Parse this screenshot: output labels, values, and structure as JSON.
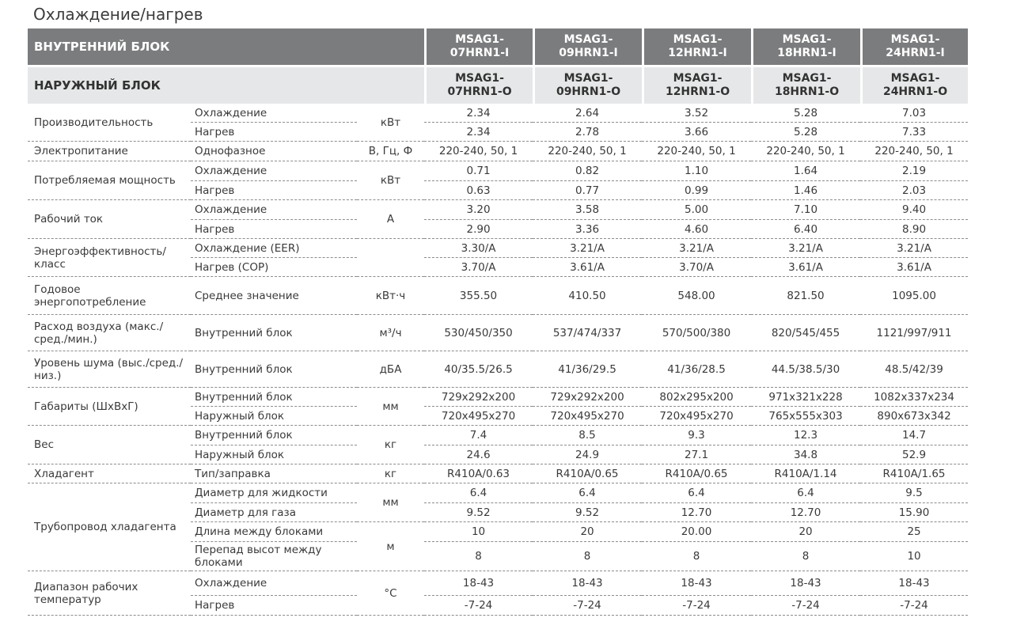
{
  "title": "Охлаждение/нагрев",
  "header": {
    "indoor_label": "ВНУТРЕННИЙ БЛОК",
    "outdoor_label": "НАРУЖНЫЙ БЛОК",
    "indoor_models": [
      [
        "MSAG1-",
        "07HRN1-I"
      ],
      [
        "MSAG1-",
        "09HRN1-I"
      ],
      [
        "MSAG1-",
        "12HRN1-I"
      ],
      [
        "MSAG1-",
        "18HRN1-I"
      ],
      [
        "MSAG1-",
        "24HRN1-I"
      ]
    ],
    "outdoor_models": [
      [
        "MSAG1-",
        "07HRN1-O"
      ],
      [
        "MSAG1-",
        "09HRN1-O"
      ],
      [
        "MSAG1-",
        "12HRN1-O"
      ],
      [
        "MSAG1-",
        "18HRN1-O"
      ],
      [
        "MSAG1-",
        "24HRN1-O"
      ]
    ]
  },
  "groups": [
    {
      "param": "Производительность",
      "rows": [
        {
          "sub": "Охлаждение",
          "unit": "кВт",
          "values": [
            "2.34",
            "2.64",
            "3.52",
            "5.28",
            "7.03"
          ]
        },
        {
          "sub": "Нагрев",
          "unit": "",
          "values": [
            "2.34",
            "2.78",
            "3.66",
            "5.28",
            "7.33"
          ]
        }
      ]
    },
    {
      "param": "Электропитание",
      "rows": [
        {
          "sub": "Однофазное",
          "unit": "В, Гц, Ф",
          "values": [
            "220-240, 50, 1",
            "220-240, 50, 1",
            "220-240, 50, 1",
            "220-240, 50, 1",
            "220-240, 50, 1"
          ]
        }
      ]
    },
    {
      "param": "Потребляемая мощность",
      "rows": [
        {
          "sub": "Охлаждение",
          "unit": "кВт",
          "values": [
            "0.71",
            "0.82",
            "1.10",
            "1.64",
            "2.19"
          ]
        },
        {
          "sub": "Нагрев",
          "unit": "",
          "values": [
            "0.63",
            "0.77",
            "0.99",
            "1.46",
            "2.03"
          ]
        }
      ]
    },
    {
      "param": "Рабочий ток",
      "rows": [
        {
          "sub": "Охлаждение",
          "unit": "А",
          "values": [
            "3.20",
            "3.58",
            "5.00",
            "7.10",
            "9.40"
          ]
        },
        {
          "sub": "Нагрев",
          "unit": "",
          "values": [
            "2.90",
            "3.36",
            "4.60",
            "6.40",
            "8.90"
          ]
        }
      ]
    },
    {
      "param": "Энергоэффективность/ класс",
      "rows": [
        {
          "sub": "Охлаждение (EER)",
          "unit": "",
          "values": [
            "3.30/A",
            "3.21/A",
            "3.21/A",
            "3.21/A",
            "3.21/A"
          ]
        },
        {
          "sub": "Нагрев (COP)",
          "unit": "",
          "values": [
            "3.70/A",
            "3.61/A",
            "3.70/A",
            "3.61/A",
            "3.61/A"
          ]
        }
      ]
    },
    {
      "param": "Годовое энергопотребление",
      "rows": [
        {
          "sub": "Среднее значение",
          "unit": "кВт·ч",
          "values": [
            "355.50",
            "410.50",
            "548.00",
            "821.50",
            "1095.00"
          ]
        }
      ]
    },
    {
      "param": "Расход воздуха (макс./сред./мин.)",
      "rows": [
        {
          "sub": "Внутренний блок",
          "unit": "м³/ч",
          "values": [
            "530/450/350",
            "537/474/337",
            "570/500/380",
            "820/545/455",
            "1121/997/911"
          ]
        }
      ]
    },
    {
      "param": "Уровень шума (выс./сред./низ.)",
      "rows": [
        {
          "sub": "Внутренний блок",
          "unit": "дБА",
          "values": [
            "40/35.5/26.5",
            "41/36/29.5",
            "41/36/28.5",
            "44.5/38.5/30",
            "48.5/42/39"
          ]
        }
      ]
    },
    {
      "param": "Габариты (ШхВхГ)",
      "rows": [
        {
          "sub": "Внутренний блок",
          "unit": "мм",
          "values": [
            "729x292x200",
            "729x292x200",
            "802x295x200",
            "971x321x228",
            "1082x337x234"
          ]
        },
        {
          "sub": "Наружный блок",
          "unit": "",
          "values": [
            "720x495x270",
            "720x495x270",
            "720x495x270",
            "765x555x303",
            "890x673x342"
          ]
        }
      ]
    },
    {
      "param": "Вес",
      "rows": [
        {
          "sub": "Внутренний блок",
          "unit": "кг",
          "values": [
            "7.4",
            "8.5",
            "9.3",
            "12.3",
            "14.7"
          ]
        },
        {
          "sub": "Наружный блок",
          "unit": "",
          "values": [
            "24.6",
            "24.9",
            "27.1",
            "34.8",
            "52.9"
          ]
        }
      ]
    },
    {
      "param": "Хладагент",
      "rows": [
        {
          "sub": "Тип/заправка",
          "unit": "кг",
          "values": [
            "R410A/0.63",
            "R410A/0.65",
            "R410A/0.65",
            "R410A/1.14",
            "R410A/1.65"
          ]
        }
      ]
    },
    {
      "param": "Трубопровод хладагента",
      "rows": [
        {
          "sub": "Диаметр для жидкости",
          "unit": "мм",
          "values": [
            "6.4",
            "6.4",
            "6.4",
            "6.4",
            "9.5"
          ]
        },
        {
          "sub": "Диаметр для газа",
          "unit": "",
          "values": [
            "9.52",
            "9.52",
            "12.70",
            "12.70",
            "15.90"
          ]
        },
        {
          "sub": "Длина между блоками",
          "unit": "м",
          "values": [
            "10",
            "20",
            "20.00",
            "20",
            "25"
          ]
        },
        {
          "sub": "Перепад высот между блоками",
          "unit": "",
          "values": [
            "8",
            "8",
            "8",
            "8",
            "10"
          ]
        }
      ]
    },
    {
      "param": "Диапазон рабочих температур",
      "rows": [
        {
          "sub": "Охлаждение",
          "unit": "°C",
          "values": [
            "18-43",
            "18-43",
            "18-43",
            "18-43",
            "18-43"
          ]
        },
        {
          "sub": "Нагрев",
          "unit": "",
          "values": [
            "-7-24",
            "-7-24",
            "-7-24",
            "-7-24",
            "-7-24"
          ]
        }
      ]
    }
  ]
}
